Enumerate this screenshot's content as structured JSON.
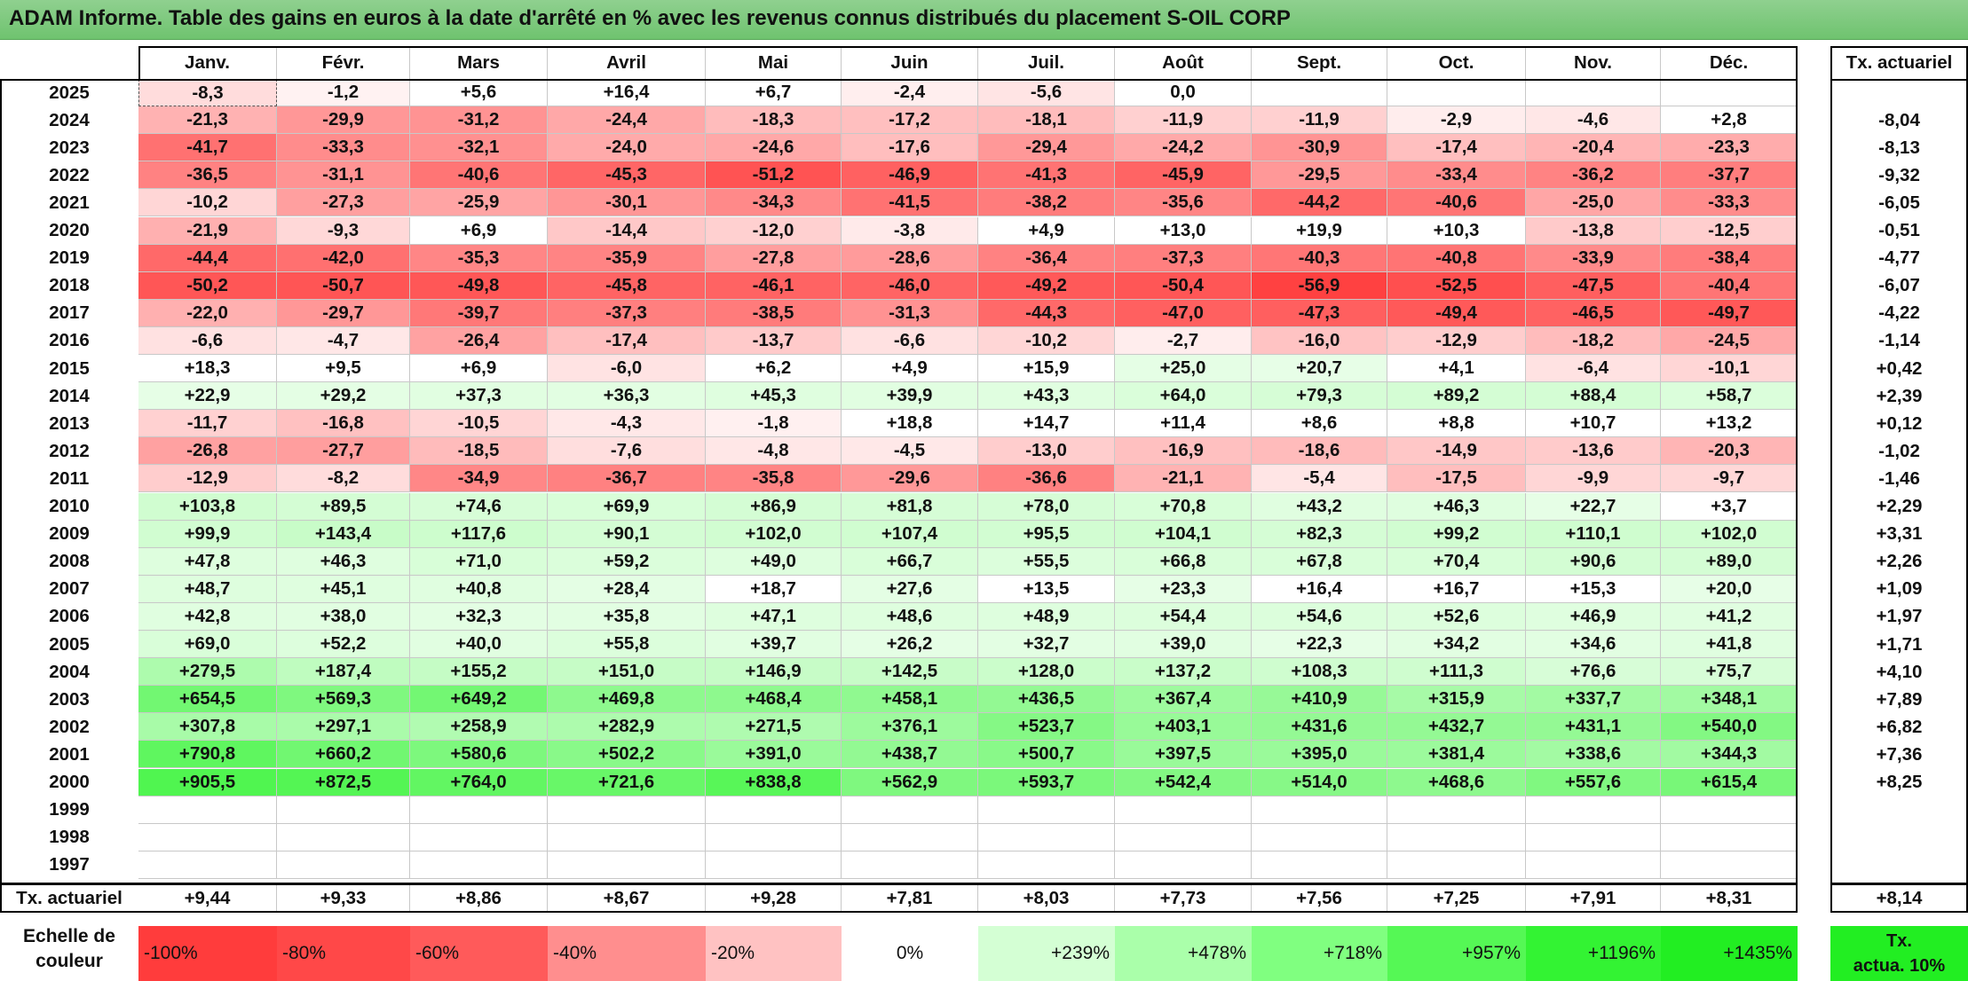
{
  "title": "ADAM Informe. Table des gains en euros à la date d'arrêté en % avec les revenus connus distribués du placement S-OIL CORP",
  "months": [
    "Janv.",
    "Févr.",
    "Mars",
    "Avril",
    "Mai",
    "Juin",
    "Juil.",
    "Août",
    "Sept.",
    "Oct.",
    "Nov.",
    "Déc."
  ],
  "tx_header": "Tx. actuariel",
  "rows": [
    {
      "year": "2025",
      "values": [
        "-8,3",
        "-1,2",
        "+5,6",
        "+16,4",
        "+6,7",
        "-2,4",
        "-5,6",
        "0,0",
        "",
        "",
        "",
        ""
      ],
      "tx": ""
    },
    {
      "year": "2024",
      "values": [
        "-21,3",
        "-29,9",
        "-31,2",
        "-24,4",
        "-18,3",
        "-17,2",
        "-18,1",
        "-11,9",
        "-11,9",
        "-2,9",
        "-4,6",
        "+2,8"
      ],
      "tx": "-8,04"
    },
    {
      "year": "2023",
      "values": [
        "-41,7",
        "-33,3",
        "-32,1",
        "-24,0",
        "-24,6",
        "-17,6",
        "-29,4",
        "-24,2",
        "-30,9",
        "-17,4",
        "-20,4",
        "-23,3"
      ],
      "tx": "-8,13"
    },
    {
      "year": "2022",
      "values": [
        "-36,5",
        "-31,1",
        "-40,6",
        "-45,3",
        "-51,2",
        "-46,9",
        "-41,3",
        "-45,9",
        "-29,5",
        "-33,4",
        "-36,2",
        "-37,7"
      ],
      "tx": "-9,32"
    },
    {
      "year": "2021",
      "values": [
        "-10,2",
        "-27,3",
        "-25,9",
        "-30,1",
        "-34,3",
        "-41,5",
        "-38,2",
        "-35,6",
        "-44,2",
        "-40,6",
        "-25,0",
        "-33,3"
      ],
      "tx": "-6,05"
    },
    {
      "year": "2020",
      "values": [
        "-21,9",
        "-9,3",
        "+6,9",
        "-14,4",
        "-12,0",
        "-3,8",
        "+4,9",
        "+13,0",
        "+19,9",
        "+10,3",
        "-13,8",
        "-12,5"
      ],
      "tx": "-0,51"
    },
    {
      "year": "2019",
      "values": [
        "-44,4",
        "-42,0",
        "-35,3",
        "-35,9",
        "-27,8",
        "-28,6",
        "-36,4",
        "-37,3",
        "-40,3",
        "-40,8",
        "-33,9",
        "-38,4"
      ],
      "tx": "-4,77"
    },
    {
      "year": "2018",
      "values": [
        "-50,2",
        "-50,7",
        "-49,8",
        "-45,8",
        "-46,1",
        "-46,0",
        "-49,2",
        "-50,4",
        "-56,9",
        "-52,5",
        "-47,5",
        "-40,4"
      ],
      "tx": "-6,07"
    },
    {
      "year": "2017",
      "values": [
        "-22,0",
        "-29,7",
        "-39,7",
        "-37,3",
        "-38,5",
        "-31,3",
        "-44,3",
        "-47,0",
        "-47,3",
        "-49,4",
        "-46,5",
        "-49,7"
      ],
      "tx": "-4,22"
    },
    {
      "year": "2016",
      "values": [
        "-6,6",
        "-4,7",
        "-26,4",
        "-17,4",
        "-13,7",
        "-6,6",
        "-10,2",
        "-2,7",
        "-16,0",
        "-12,9",
        "-18,2",
        "-24,5"
      ],
      "tx": "-1,14"
    },
    {
      "year": "2015",
      "values": [
        "+18,3",
        "+9,5",
        "+6,9",
        "-6,0",
        "+6,2",
        "+4,9",
        "+15,9",
        "+25,0",
        "+20,7",
        "+4,1",
        "-6,4",
        "-10,1"
      ],
      "tx": "+0,42"
    },
    {
      "year": "2014",
      "values": [
        "+22,9",
        "+29,2",
        "+37,3",
        "+36,3",
        "+45,3",
        "+39,9",
        "+43,3",
        "+64,0",
        "+79,3",
        "+89,2",
        "+88,4",
        "+58,7"
      ],
      "tx": "+2,39"
    },
    {
      "year": "2013",
      "values": [
        "-11,7",
        "-16,8",
        "-10,5",
        "-4,3",
        "-1,8",
        "+18,8",
        "+14,7",
        "+11,4",
        "+8,6",
        "+8,8",
        "+10,7",
        "+13,2"
      ],
      "tx": "+0,12"
    },
    {
      "year": "2012",
      "values": [
        "-26,8",
        "-27,7",
        "-18,5",
        "-7,6",
        "-4,8",
        "-4,5",
        "-13,0",
        "-16,9",
        "-18,6",
        "-14,9",
        "-13,6",
        "-20,3"
      ],
      "tx": "-1,02"
    },
    {
      "year": "2011",
      "values": [
        "-12,9",
        "-8,2",
        "-34,9",
        "-36,7",
        "-35,8",
        "-29,6",
        "-36,6",
        "-21,1",
        "-5,4",
        "-17,5",
        "-9,9",
        "-9,7"
      ],
      "tx": "-1,46"
    },
    {
      "year": "2010",
      "values": [
        "+103,8",
        "+89,5",
        "+74,6",
        "+69,9",
        "+86,9",
        "+81,8",
        "+78,0",
        "+70,8",
        "+43,2",
        "+46,3",
        "+22,7",
        "+3,7"
      ],
      "tx": "+2,29"
    },
    {
      "year": "2009",
      "values": [
        "+99,9",
        "+143,4",
        "+117,6",
        "+90,1",
        "+102,0",
        "+107,4",
        "+95,5",
        "+104,1",
        "+82,3",
        "+99,2",
        "+110,1",
        "+102,0"
      ],
      "tx": "+3,31"
    },
    {
      "year": "2008",
      "values": [
        "+47,8",
        "+46,3",
        "+71,0",
        "+59,2",
        "+49,0",
        "+66,7",
        "+55,5",
        "+66,8",
        "+67,8",
        "+70,4",
        "+90,6",
        "+89,0"
      ],
      "tx": "+2,26"
    },
    {
      "year": "2007",
      "values": [
        "+48,7",
        "+45,1",
        "+40,8",
        "+28,4",
        "+18,7",
        "+27,6",
        "+13,5",
        "+23,3",
        "+16,4",
        "+16,7",
        "+15,3",
        "+20,0"
      ],
      "tx": "+1,09"
    },
    {
      "year": "2006",
      "values": [
        "+42,8",
        "+38,0",
        "+32,3",
        "+35,8",
        "+47,1",
        "+48,6",
        "+48,9",
        "+54,4",
        "+54,6",
        "+52,6",
        "+46,9",
        "+41,2"
      ],
      "tx": "+1,97"
    },
    {
      "year": "2005",
      "values": [
        "+69,0",
        "+52,2",
        "+40,0",
        "+55,8",
        "+39,7",
        "+26,2",
        "+32,7",
        "+39,0",
        "+22,3",
        "+34,2",
        "+34,6",
        "+41,8"
      ],
      "tx": "+1,71"
    },
    {
      "year": "2004",
      "values": [
        "+279,5",
        "+187,4",
        "+155,2",
        "+151,0",
        "+146,9",
        "+142,5",
        "+128,0",
        "+137,2",
        "+108,3",
        "+111,3",
        "+76,6",
        "+75,7"
      ],
      "tx": "+4,10"
    },
    {
      "year": "2003",
      "values": [
        "+654,5",
        "+569,3",
        "+649,2",
        "+469,8",
        "+468,4",
        "+458,1",
        "+436,5",
        "+367,4",
        "+410,9",
        "+315,9",
        "+337,7",
        "+348,1"
      ],
      "tx": "+7,89"
    },
    {
      "year": "2002",
      "values": [
        "+307,8",
        "+297,1",
        "+258,9",
        "+282,9",
        "+271,5",
        "+376,1",
        "+523,7",
        "+403,1",
        "+431,6",
        "+432,7",
        "+431,1",
        "+540,0"
      ],
      "tx": "+6,82"
    },
    {
      "year": "2001",
      "values": [
        "+790,8",
        "+660,2",
        "+580,6",
        "+502,2",
        "+391,0",
        "+438,7",
        "+500,7",
        "+397,5",
        "+395,0",
        "+381,4",
        "+338,6",
        "+344,3"
      ],
      "tx": "+7,36"
    },
    {
      "year": "2000",
      "values": [
        "+905,5",
        "+872,5",
        "+764,0",
        "+721,6",
        "+838,8",
        "+562,9",
        "+593,7",
        "+542,4",
        "+514,0",
        "+468,6",
        "+557,6",
        "+615,4"
      ],
      "tx": "+8,25"
    },
    {
      "year": "1999",
      "values": [
        "",
        "",
        "",
        "",
        "",
        "",
        "",
        "",
        "",
        "",
        "",
        ""
      ],
      "tx": ""
    },
    {
      "year": "1998",
      "values": [
        "",
        "",
        "",
        "",
        "",
        "",
        "",
        "",
        "",
        "",
        "",
        ""
      ],
      "tx": ""
    },
    {
      "year": "1997",
      "values": [
        "",
        "",
        "",
        "",
        "",
        "",
        "",
        "",
        "",
        "",
        "",
        ""
      ],
      "tx": ""
    }
  ],
  "footer": {
    "label": "Tx. actuariel",
    "values": [
      "+9,44",
      "+9,33",
      "+8,86",
      "+8,67",
      "+9,28",
      "+7,81",
      "+8,03",
      "+7,73",
      "+7,56",
      "+7,25",
      "+7,91",
      "+8,31"
    ],
    "tx": "+8,14"
  },
  "legend": {
    "label_line1": "Echelle de",
    "label_line2": "couleur",
    "items": [
      {
        "text": "-100%",
        "color": "#ff3c3c",
        "align": "left"
      },
      {
        "text": "-80%",
        "color": "#ff4848",
        "align": "left"
      },
      {
        "text": "-60%",
        "color": "#ff5a5a",
        "align": "left"
      },
      {
        "text": "-40%",
        "color": "#ff8e8e",
        "align": "left"
      },
      {
        "text": "-20%",
        "color": "#ffc2c2",
        "align": "left"
      },
      {
        "text": "0%",
        "color": "#ffffff",
        "align": "center"
      },
      {
        "text": "+239%",
        "color": "#d4ffd4",
        "align": "right"
      },
      {
        "text": "+478%",
        "color": "#aaffaa",
        "align": "right"
      },
      {
        "text": "+718%",
        "color": "#80ff80",
        "align": "right"
      },
      {
        "text": "+957%",
        "color": "#55f855",
        "align": "right"
      },
      {
        "text": "+1196%",
        "color": "#33f333",
        "align": "right"
      },
      {
        "text": "+1435%",
        "color": "#22ee22",
        "align": "right"
      }
    ],
    "actua_line1": "Tx.",
    "actua_line2": "actua. 10%"
  }
}
